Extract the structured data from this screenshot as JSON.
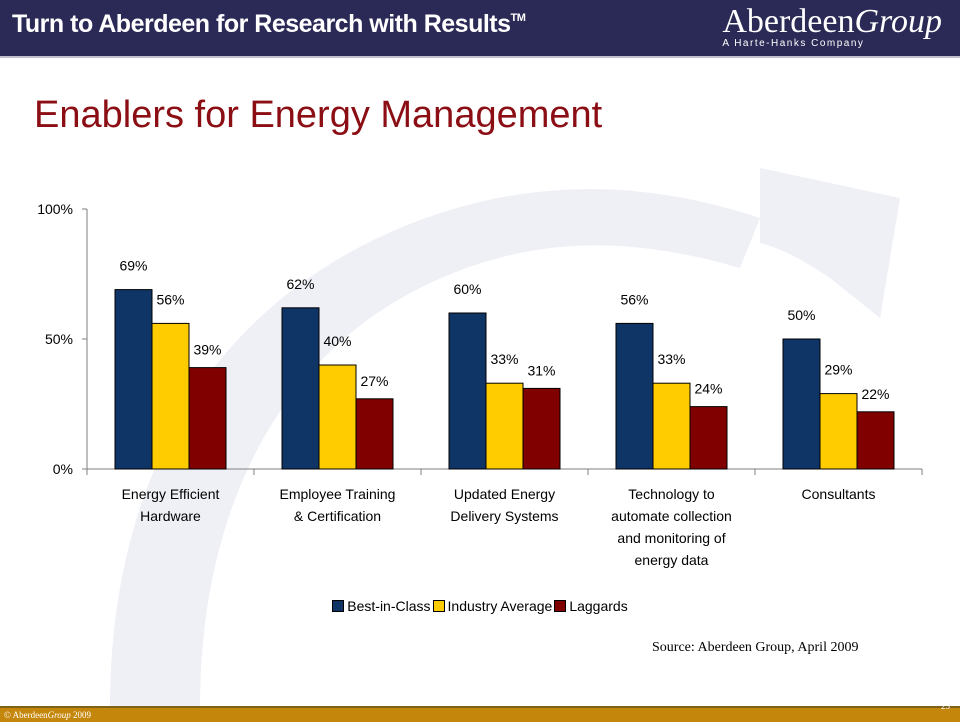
{
  "header": {
    "tagline": "Turn to Aberdeen for Research with Results",
    "trademark": "TM",
    "logo_name_plain": "Aberdeen",
    "logo_name_italic": "Group",
    "logo_sub": "A Harte-Hanks Company"
  },
  "slide": {
    "title": "Enablers for Energy Management"
  },
  "chart_data": {
    "type": "bar",
    "categories": [
      [
        "Energy Efficient",
        "Hardware"
      ],
      [
        "Employee Training",
        "& Certification"
      ],
      [
        "Updated Energy",
        "Delivery Systems"
      ],
      [
        "Technology to",
        "automate collection",
        "and monitoring of",
        "energy data"
      ],
      [
        "Consultants"
      ]
    ],
    "series": [
      {
        "name": "Best-in-Class",
        "color": "#0f3466",
        "values": [
          69,
          62,
          60,
          56,
          50
        ],
        "labels": [
          "69%",
          "62%",
          "60%",
          "56%",
          "50%"
        ]
      },
      {
        "name": "Industry Average",
        "color": "#ffcc00",
        "values": [
          56,
          40,
          33,
          33,
          29
        ],
        "labels": [
          "56%",
          "40%",
          "33%",
          "33%",
          "29%"
        ]
      },
      {
        "name": "Laggards",
        "color": "#800000",
        "values": [
          39,
          27,
          31,
          24,
          22
        ],
        "labels": [
          "39%",
          "27%",
          "31%",
          "24%",
          "22%"
        ]
      }
    ],
    "ylim": [
      0,
      100
    ],
    "yticks": [
      0,
      50,
      100
    ],
    "ytick_labels": [
      "0%",
      "50%",
      "100%"
    ],
    "grid": false,
    "legend_position": "bottom"
  },
  "source": "Source: Aberdeen Group, April 2009",
  "footer": {
    "copyright_prefix": "© Aberdeen",
    "copyright_italic": "Group",
    "copyright_year": " 2009",
    "page_number": "25"
  }
}
